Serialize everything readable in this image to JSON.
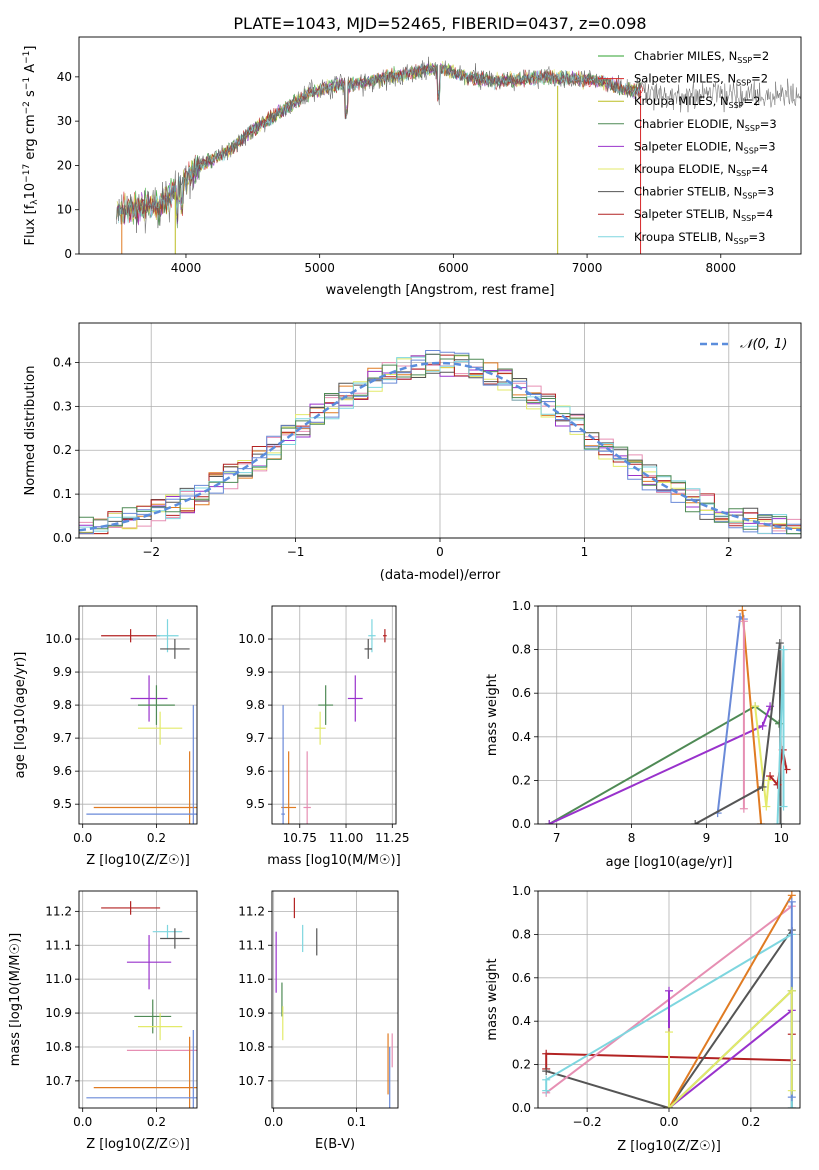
{
  "figure_title": "PLATE=1043, MJD=52465, FIBERID=0437, z=0.098",
  "colors": {
    "Chabrier MILES": "#2ca02c",
    "Salpeter MILES": "#d62728",
    "Kroupa MILES": "#bcbd22",
    "Chabrier ELODIE": "#4f8a55",
    "Salpeter ELODIE": "#9932cc",
    "Kroupa ELODIE": "#e3ea6a",
    "Chabrier STELIB": "#555555",
    "Salpeter STELIB": "#b22222",
    "Kroupa STELIB": "#7ed6df",
    "normal": "#5b8ddc",
    "orange": "#e07b22",
    "pink": "#e68fb3",
    "blue": "#6a8ad8"
  },
  "chart_data": [
    {
      "type": "line",
      "title": "PLATE=1043, MJD=52465, FIBERID=0437, z=0.098",
      "xlabel": "wavelength [Angstrom, rest frame]",
      "ylabel": "Flux [f_λ 10^-17 erg cm^-2 s^-1 A^-1]",
      "xlim": [
        3200,
        8600
      ],
      "ylim": [
        0,
        49
      ],
      "xticks": [
        "4000",
        "5000",
        "6000",
        "7000",
        "8000"
      ],
      "yticks": [
        "0",
        "10",
        "20",
        "30",
        "40"
      ],
      "legend_position": "upper-right",
      "series": [
        {
          "name": "Chabrier MILES, N_SSP=2"
        },
        {
          "name": "Salpeter MILES, N_SSP=2"
        },
        {
          "name": "Kroupa MILES, N_SSP=2"
        },
        {
          "name": "Chabrier ELODIE, N_SSP=3"
        },
        {
          "name": "Salpeter ELODIE, N_SSP=3"
        },
        {
          "name": "Kroupa ELODIE, N_SSP=4"
        },
        {
          "name": "Chabrier STELIB, N_SSP=3"
        },
        {
          "name": "Salpeter STELIB, N_SSP=4"
        },
        {
          "name": "Kroupa STELIB, N_SSP=3"
        }
      ],
      "spectrum_continuum": {
        "x": [
          3480,
          3600,
          3800,
          3950,
          4100,
          4300,
          4500,
          4700,
          4900,
          5100,
          5300,
          5500,
          5700,
          5900,
          6100,
          6300,
          6500,
          6700,
          6900,
          7100,
          7300,
          7420
        ],
        "y": [
          9.5,
          10,
          11,
          15,
          20,
          23,
          28,
          32,
          36,
          38,
          38.5,
          40,
          41,
          42,
          40,
          39,
          39.5,
          40,
          39.5,
          39,
          37,
          37
        ]
      }
    },
    {
      "type": "histogram",
      "xlabel": "(data-model)/error",
      "ylabel": "Normed distribution",
      "xlim": [
        -2.5,
        2.5
      ],
      "ylim": [
        0,
        0.49
      ],
      "xticks": [
        "−2",
        "−1",
        "0",
        "1",
        "2"
      ],
      "yticks": [
        "0.0",
        "0.1",
        "0.2",
        "0.3",
        "0.4"
      ],
      "legend": "𝒩(0, 1)",
      "legend_position": "upper-right",
      "grid": true,
      "bin_width": 0.1
    },
    {
      "type": "scatter",
      "xlabel": "Z [log10(Z/Z☉)]",
      "ylabel": "age  [log10(age/yr)]",
      "xlim": [
        -0.01,
        0.31
      ],
      "ylim": [
        9.44,
        10.1
      ],
      "xticks": [
        "0.0",
        "0.2"
      ],
      "yticks": [
        "9.5",
        "9.6",
        "9.7",
        "9.8",
        "9.9",
        "10.0"
      ],
      "grid": true,
      "points": [
        {
          "name": "Salpeter STELIB",
          "x": 0.13,
          "y": 10.01,
          "xerr": 0.08,
          "yerr": 0.02
        },
        {
          "name": "Kroupa STELIB",
          "x": 0.23,
          "y": 10.01,
          "xerr": 0.03,
          "yerr": 0.05
        },
        {
          "name": "Chabrier STELIB",
          "x": 0.25,
          "y": 9.97,
          "xerr": 0.04,
          "yerr": 0.03
        },
        {
          "name": "Salpeter ELODIE",
          "x": 0.18,
          "y": 9.82,
          "xerr": 0.05,
          "yerr": 0.07
        },
        {
          "name": "Chabrier ELODIE",
          "x": 0.2,
          "y": 9.8,
          "xerr": 0.05,
          "yerr": 0.06
        },
        {
          "name": "Kroupa ELODIE",
          "x": 0.21,
          "y": 9.73,
          "xerr": 0.06,
          "yerr": 0.05
        },
        {
          "name": "orange",
          "x": 0.29,
          "y": 9.49,
          "xerr": 0.26,
          "yerr": 0.17
        },
        {
          "name": "blue",
          "x": 0.3,
          "y": 9.47,
          "xerr": 0.29,
          "yerr": 0.33
        }
      ]
    },
    {
      "type": "scatter",
      "xlabel": "mass [log10(M/M☉)]",
      "ylabel": "",
      "xlim": [
        10.6,
        11.27
      ],
      "ylim": [
        9.44,
        10.1
      ],
      "xticks": [
        "10.75",
        "11.00",
        "11.25"
      ],
      "yticks": [
        "9.5",
        "9.6",
        "9.7",
        "9.8",
        "9.9",
        "10.0"
      ],
      "grid": true,
      "points": [
        {
          "name": "Salpeter STELIB",
          "x": 11.21,
          "y": 10.01,
          "xerr": 0.01,
          "yerr": 0.02
        },
        {
          "name": "Kroupa STELIB",
          "x": 11.14,
          "y": 10.01,
          "xerr": 0.02,
          "yerr": 0.05
        },
        {
          "name": "Chabrier STELIB",
          "x": 11.12,
          "y": 9.97,
          "xerr": 0.02,
          "yerr": 0.03
        },
        {
          "name": "Salpeter ELODIE",
          "x": 11.05,
          "y": 9.82,
          "xerr": 0.04,
          "yerr": 0.07
        },
        {
          "name": "Chabrier ELODIE",
          "x": 10.89,
          "y": 9.8,
          "xerr": 0.04,
          "yerr": 0.06
        },
        {
          "name": "Kroupa ELODIE",
          "x": 10.86,
          "y": 9.73,
          "xerr": 0.03,
          "yerr": 0.05
        },
        {
          "name": "pink",
          "x": 10.79,
          "y": 9.49,
          "xerr": 0.02,
          "yerr": 0.17
        },
        {
          "name": "orange",
          "x": 10.69,
          "y": 9.49,
          "xerr": 0.04,
          "yerr": 0.17
        },
        {
          "name": "blue",
          "x": 10.66,
          "y": 9.47,
          "xerr": 0.01,
          "yerr": 0.33
        }
      ]
    },
    {
      "type": "line",
      "xlabel": "age  [log10(age/yr)]",
      "ylabel": "mass weight",
      "xlim": [
        6.75,
        10.25
      ],
      "ylim": [
        0,
        1
      ],
      "xticks": [
        "7",
        "8",
        "9",
        "10"
      ],
      "yticks": [
        "0.0",
        "0.2",
        "0.4",
        "0.6",
        "0.8",
        "1.0"
      ],
      "grid": true,
      "series": [
        {
          "name": "Chabrier ELODIE",
          "x": [
            6.9,
            9.65,
            9.97
          ],
          "y": [
            0.0,
            0.54,
            0.46
          ]
        },
        {
          "name": "Salpeter ELODIE",
          "x": [
            6.9,
            9.75,
            9.85
          ],
          "y": [
            0.0,
            0.45,
            0.54
          ]
        },
        {
          "name": "blue",
          "x": [
            9.15,
            9.45,
            9.5
          ],
          "y": [
            0.05,
            0.95,
            0.94
          ]
        },
        {
          "name": "orange",
          "x": [
            9.48,
            9.73
          ],
          "y": [
            0.98,
            0.0
          ]
        },
        {
          "name": "pink",
          "x": [
            9.5,
            9.5
          ],
          "y": [
            0.93,
            0.07
          ]
        },
        {
          "name": "Kroupa ELODIE",
          "x": [
            9.65,
            9.8,
            9.83
          ],
          "y": [
            0.54,
            0.08,
            0.2
          ]
        },
        {
          "name": "Chabrier STELIB",
          "x": [
            8.85,
            9.75,
            9.98,
            9.99
          ],
          "y": [
            0.0,
            0.17,
            0.83,
            0.0
          ]
        },
        {
          "name": "Salpeter STELIB",
          "x": [
            9.85,
            9.95,
            10.02,
            10.07
          ],
          "y": [
            0.22,
            0.18,
            0.34,
            0.25
          ]
        },
        {
          "name": "Kroupa STELIB",
          "x": [
            9.95,
            10.03,
            10.03
          ],
          "y": [
            0.0,
            0.8,
            0.08
          ]
        }
      ]
    },
    {
      "type": "scatter",
      "xlabel": "Z [log10(Z/Z☉)]",
      "ylabel": "mass [log10(M/M☉)]",
      "xlim": [
        -0.01,
        0.31
      ],
      "ylim": [
        10.62,
        11.26
      ],
      "xticks": [
        "0.0",
        "0.2"
      ],
      "yticks": [
        "10.7",
        "10.8",
        "10.9",
        "11.0",
        "11.1",
        "11.2"
      ],
      "grid": true,
      "points": [
        {
          "name": "Salpeter STELIB",
          "x": 0.13,
          "y": 11.21,
          "xerr": 0.08,
          "yerr": 0.02
        },
        {
          "name": "Kroupa STELIB",
          "x": 0.23,
          "y": 11.14,
          "xerr": 0.04,
          "yerr": 0.02
        },
        {
          "name": "Chabrier STELIB",
          "x": 0.25,
          "y": 11.12,
          "xerr": 0.04,
          "yerr": 0.03
        },
        {
          "name": "Salpeter ELODIE",
          "x": 0.18,
          "y": 11.05,
          "xerr": 0.06,
          "yerr": 0.08
        },
        {
          "name": "Chabrier ELODIE",
          "x": 0.19,
          "y": 10.89,
          "xerr": 0.05,
          "yerr": 0.05
        },
        {
          "name": "Kroupa ELODIE",
          "x": 0.21,
          "y": 10.86,
          "xerr": 0.06,
          "yerr": 0.04
        },
        {
          "name": "pink",
          "x": 0.29,
          "y": 10.79,
          "xerr": 0.17,
          "yerr": 0.03
        },
        {
          "name": "orange",
          "x": 0.29,
          "y": 10.68,
          "xerr": 0.26,
          "yerr": 0.15
        },
        {
          "name": "blue",
          "x": 0.3,
          "y": 10.65,
          "xerr": 0.29,
          "yerr": 0.2
        }
      ]
    },
    {
      "type": "scatter",
      "xlabel": "E(B-V)",
      "ylabel": "",
      "xlim": [
        -0.002,
        0.15
      ],
      "ylim": [
        10.62,
        11.26
      ],
      "xticks": [
        "0.0",
        "0.1"
      ],
      "yticks": [
        "10.7",
        "10.8",
        "10.9",
        "11.0",
        "11.1",
        "11.2"
      ],
      "grid": true,
      "points": [
        {
          "name": "Salpeter STELIB",
          "x": 0.025,
          "y": 11.21,
          "yerr": 0.03
        },
        {
          "name": "Kroupa STELIB",
          "x": 0.035,
          "y": 11.12,
          "yerr": 0.04
        },
        {
          "name": "Chabrier STELIB",
          "x": 0.052,
          "y": 11.11,
          "yerr": 0.04
        },
        {
          "name": "Salpeter ELODIE",
          "x": 0.003,
          "y": 11.05,
          "yerr": 0.09
        },
        {
          "name": "Chabrier ELODIE",
          "x": 0.01,
          "y": 10.94,
          "yerr": 0.05
        },
        {
          "name": "Kroupa ELODIE",
          "x": 0.011,
          "y": 10.87,
          "yerr": 0.05
        },
        {
          "name": "orange",
          "x": 0.138,
          "y": 10.75,
          "yerr": 0.09
        },
        {
          "name": "pink",
          "x": 0.143,
          "y": 10.79,
          "yerr": 0.05
        },
        {
          "name": "blue",
          "x": 0.14,
          "y": 10.7,
          "yerr": 0.1
        }
      ]
    },
    {
      "type": "line",
      "xlabel": "Z [log10(Z/Z☉)]",
      "ylabel": "mass weight",
      "xlim": [
        -0.32,
        0.32
      ],
      "ylim": [
        0,
        1
      ],
      "xticks": [
        "−0.2",
        "0.0",
        "0.2"
      ],
      "yticks": [
        "0.0",
        "0.2",
        "0.4",
        "0.6",
        "0.8",
        "1.0"
      ],
      "grid": true,
      "series": [
        {
          "name": "Salpeter STELIB",
          "x": [
            -0.3,
            -0.3,
            0.3,
            0.3
          ],
          "y": [
            0.18,
            0.25,
            0.22,
            0.34
          ]
        },
        {
          "name": "Chabrier STELIB",
          "x": [
            -0.3,
            0.0,
            0.3,
            0.3
          ],
          "y": [
            0.17,
            0.0,
            0.82,
            0.0
          ]
        },
        {
          "name": "pink",
          "x": [
            -0.3,
            0.3
          ],
          "y": [
            0.07,
            0.93
          ]
        },
        {
          "name": "Kroupa STELIB",
          "x": [
            -0.3,
            -0.3,
            0.3,
            0.3
          ],
          "y": [
            0.08,
            0.13,
            0.8,
            0.0
          ]
        },
        {
          "name": "orange",
          "x": [
            0.0,
            0.3
          ],
          "y": [
            0.0,
            0.98
          ]
        },
        {
          "name": "blue",
          "x": [
            0.3,
            0.3
          ],
          "y": [
            0.05,
            0.95
          ]
        },
        {
          "name": "Salpeter ELODIE",
          "x": [
            0.0,
            0.0,
            0.3
          ],
          "y": [
            0.54,
            0.0,
            0.45
          ]
        },
        {
          "name": "Chabrier ELODIE",
          "x": [
            0.0,
            0.3
          ],
          "y": [
            0.0,
            0.54
          ]
        },
        {
          "name": "Kroupa ELODIE",
          "x": [
            0.0,
            0.0,
            0.3,
            0.3
          ],
          "y": [
            0.35,
            0.0,
            0.54,
            0.08
          ]
        }
      ]
    }
  ]
}
